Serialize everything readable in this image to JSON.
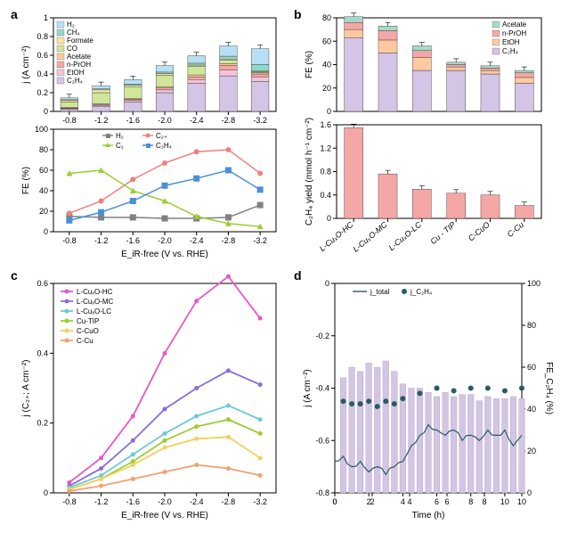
{
  "panels": {
    "a": {
      "label": "a",
      "top": {
        "type": "stacked-bar",
        "ylabel": "j (A cm⁻²)",
        "ylim": [
          0,
          1.0
        ],
        "yticks": [
          0,
          0.2,
          0.4,
          0.6,
          0.8,
          1.0
        ],
        "categories": [
          "-0.8",
          "-1.2",
          "-1.6",
          "-2.0",
          "-2.4",
          "-2.8",
          "-3.2"
        ],
        "legend": [
          "H₂",
          "CH₄",
          "Formate",
          "CO",
          "Acetate",
          "n-PrOH",
          "EtOH",
          "C₂H₄"
        ],
        "legend_colors": [
          "#b8e0f5",
          "#8fd9c9",
          "#f5e6a0",
          "#d0e69a",
          "#ffc9a0",
          "#f5a6a6",
          "#f5c4d8",
          "#d4c4e6"
        ],
        "bars": [
          {
            "H2": 0.02,
            "CH4": 0.005,
            "Formate": 0.02,
            "CO": 0.06,
            "Acetate": 0.005,
            "nPrOH": 0.005,
            "EtOH": 0.01,
            "C2H4": 0.02
          },
          {
            "H2": 0.035,
            "CH4": 0.01,
            "Formate": 0.03,
            "CO": 0.12,
            "Acetate": 0.005,
            "nPrOH": 0.01,
            "EtOH": 0.015,
            "C2H4": 0.05
          },
          {
            "H2": 0.05,
            "CH4": 0.01,
            "Formate": 0.02,
            "CO": 0.12,
            "Acetate": 0.01,
            "nPrOH": 0.01,
            "EtOH": 0.02,
            "C2H4": 0.1
          },
          {
            "H2": 0.07,
            "CH4": 0.015,
            "Formate": 0.02,
            "CO": 0.12,
            "Acetate": 0.015,
            "nPrOH": 0.02,
            "EtOH": 0.03,
            "C2H4": 0.2
          },
          {
            "H2": 0.08,
            "CH4": 0.02,
            "Formate": 0.015,
            "CO": 0.09,
            "Acetate": 0.02,
            "nPrOH": 0.03,
            "EtOH": 0.04,
            "C2H4": 0.3
          },
          {
            "H2": 0.11,
            "CH4": 0.03,
            "Formate": 0.01,
            "CO": 0.04,
            "Acetate": 0.02,
            "nPrOH": 0.05,
            "EtOH": 0.06,
            "C2H4": 0.38
          },
          {
            "H2": 0.17,
            "CH4": 0.07,
            "Formate": 0.005,
            "CO": 0.01,
            "Acetate": 0.015,
            "nPrOH": 0.03,
            "EtOH": 0.05,
            "C2H4": 0.32
          }
        ]
      },
      "bottom": {
        "type": "line",
        "ylabel": "FE (%)",
        "xlabel": "Eᵢᴿ₋free (V vs. RHE)",
        "xlabel_plain": "E_iR-free (V vs. RHE)",
        "ylim": [
          0,
          100
        ],
        "yticks": [
          0,
          20,
          40,
          60,
          80,
          100
        ],
        "xticks": [
          "-0.8",
          "-1.2",
          "-1.6",
          "-2.0",
          "-2.4",
          "-2.8",
          "-3.2"
        ],
        "series": [
          {
            "name": "H₂",
            "color": "#808080",
            "marker": "square",
            "values": [
              15,
              14,
              14,
              13,
              13,
              14,
              26
            ]
          },
          {
            "name": "C₂₊",
            "color": "#f08080",
            "marker": "circle",
            "values": [
              18,
              30,
              51,
              67,
              78,
              80,
              57
            ]
          },
          {
            "name": "C₁",
            "color": "#9acd32",
            "marker": "triangle",
            "values": [
              57,
              60,
              40,
              30,
              15,
              8,
              5
            ]
          },
          {
            "name": "C₂H₄",
            "color": "#4a90d9",
            "marker": "square",
            "values": [
              11,
              19,
              30,
              45,
              52,
              60,
              41
            ]
          }
        ]
      }
    },
    "b": {
      "label": "b",
      "top": {
        "type": "stacked-bar",
        "ylabel": "FE (%)",
        "ylim": [
          0,
          80
        ],
        "yticks": [
          0,
          20,
          40,
          60,
          80
        ],
        "legend": [
          "Acetate",
          "n-PrOH",
          "EtOH",
          "C₂H₄"
        ],
        "legend_colors": [
          "#a6d9c8",
          "#f5a6a6",
          "#ffc9a0",
          "#d4c4e6"
        ],
        "bars": [
          {
            "Acetate": 5,
            "nPrOH": 6,
            "EtOH": 7,
            "C2H4": 63
          },
          {
            "Acetate": 4,
            "nPrOH": 8,
            "EtOH": 11,
            "C2H4": 50
          },
          {
            "Acetate": 4,
            "nPrOH": 6,
            "EtOH": 11,
            "C2H4": 35
          },
          {
            "Acetate": 2,
            "nPrOH": 2,
            "EtOH": 3,
            "C2H4": 35
          },
          {
            "Acetate": 2,
            "nPrOH": 2,
            "EtOH": 3,
            "C2H4": 32
          },
          {
            "Acetate": 2,
            "nPrOH": 4,
            "EtOH": 5,
            "C2H4": 24
          }
        ]
      },
      "bottom": {
        "type": "bar",
        "ylabel": "C₂H₄ yield (mmol h⁻¹ cm⁻²)",
        "ylim": [
          0,
          1.6
        ],
        "yticks": [
          0,
          0.4,
          0.8,
          1.2,
          1.6
        ],
        "categories": [
          "L-CuₓO-HC",
          "L-CuₓO-MC",
          "L-CuₓO-LC",
          "Cu - TIP",
          "C-CuO",
          "C-Cu"
        ],
        "bar_color": "#f5a6a6",
        "values": [
          1.55,
          0.76,
          0.5,
          0.43,
          0.4,
          0.22
        ]
      }
    },
    "c": {
      "label": "c",
      "chart": {
        "type": "line",
        "ylabel": "j (C₂₊; A cm⁻²)",
        "xlabel": "E_iR-free (V vs. RHE)",
        "ylim": [
          0,
          0.6
        ],
        "yticks": [
          0,
          0.2,
          0.4,
          0.6
        ],
        "xticks": [
          "-0.8",
          "-1.2",
          "-1.6",
          "-2.0",
          "-2.4",
          "-2.8",
          "-3.2"
        ],
        "series": [
          {
            "name": "L-CuₓO-HC",
            "color": "#e858c8",
            "values": [
              0.03,
              0.1,
              0.22,
              0.4,
              0.55,
              0.62,
              0.5
            ]
          },
          {
            "name": "L-CuₓO-MC",
            "color": "#8a6dd9",
            "values": [
              0.02,
              0.07,
              0.15,
              0.24,
              0.3,
              0.35,
              0.31
            ]
          },
          {
            "name": "L-CuₓO-LC",
            "color": "#6dc9d9",
            "values": [
              0.015,
              0.05,
              0.11,
              0.17,
              0.22,
              0.25,
              0.21
            ]
          },
          {
            "name": "Cu-TIP",
            "color": "#9acd32",
            "values": [
              0.01,
              0.04,
              0.09,
              0.15,
              0.19,
              0.21,
              0.17
            ]
          },
          {
            "name": "C-CuO",
            "color": "#f5d060",
            "values": [
              0.01,
              0.04,
              0.08,
              0.13,
              0.155,
              0.16,
              0.1
            ]
          },
          {
            "name": "C-Cu",
            "color": "#f5a070",
            "values": [
              0.005,
              0.02,
              0.04,
              0.06,
              0.08,
              0.07,
              0.05
            ]
          }
        ]
      }
    },
    "d": {
      "label": "d",
      "chart": {
        "type": "mixed",
        "xlabel": "Time (h)",
        "ylabel_left": "j (A cm⁻²)",
        "ylabel_right": "FE_C₂H₄ (%)",
        "ylim_left": [
          -0.8,
          0
        ],
        "yticks_left": [
          -0.8,
          -0.6,
          -0.4,
          -0.2,
          0
        ],
        "ylim_right": [
          0,
          100
        ],
        "yticks_right": [
          0,
          20,
          40,
          60,
          80,
          100
        ],
        "xlim": [
          0,
          11
        ],
        "xticks": [
          0,
          2,
          4,
          6,
          8,
          10
        ],
        "legend": [
          {
            "name": "j_total",
            "color": "#2a5a6a",
            "type": "line"
          },
          {
            "name": "j_C₂H₄",
            "color": "#2a5a6a",
            "type": "dot"
          }
        ],
        "bar_color": "#d4c4e6",
        "fe_bars_x": [
          0.5,
          1,
          1.5,
          2,
          2.5,
          3,
          3.5,
          4,
          4.5,
          5,
          5.5,
          6,
          6.5,
          7,
          7.5,
          8,
          8.5,
          9,
          9.5,
          10,
          10.5,
          11
        ],
        "fe_bars": [
          55,
          60,
          58,
          62,
          60,
          63,
          58,
          52,
          50,
          50,
          48,
          46,
          48,
          46,
          47,
          47,
          44,
          46,
          45,
          45,
          46,
          45
        ],
        "j_total_x": [
          0,
          0.5,
          1,
          1.5,
          2,
          2.5,
          3,
          3.5,
          4,
          4.5,
          5,
          5.5,
          6,
          6.5,
          7,
          7.5,
          8,
          8.5,
          9,
          9.5,
          10,
          10.5,
          11
        ],
        "j_total": [
          -0.68,
          -0.66,
          -0.7,
          -0.68,
          -0.72,
          -0.7,
          -0.73,
          -0.7,
          -0.68,
          -0.62,
          -0.58,
          -0.54,
          -0.56,
          -0.58,
          -0.56,
          -0.6,
          -0.58,
          -0.6,
          -0.56,
          -0.58,
          -0.56,
          -0.62,
          -0.58
        ],
        "j_c2h4_x": [
          0.5,
          1,
          1.5,
          2,
          2.5,
          3,
          3.5,
          4,
          5,
          6,
          7,
          8,
          9,
          10,
          11
        ],
        "j_c2h4": [
          -0.45,
          -0.46,
          -0.46,
          -0.45,
          -0.47,
          -0.45,
          -0.46,
          -0.44,
          -0.42,
          -0.4,
          -0.41,
          -0.4,
          -0.4,
          -0.41,
          -0.4
        ]
      }
    }
  },
  "colors": {
    "axis": "#000000",
    "bg": "#ffffff"
  }
}
